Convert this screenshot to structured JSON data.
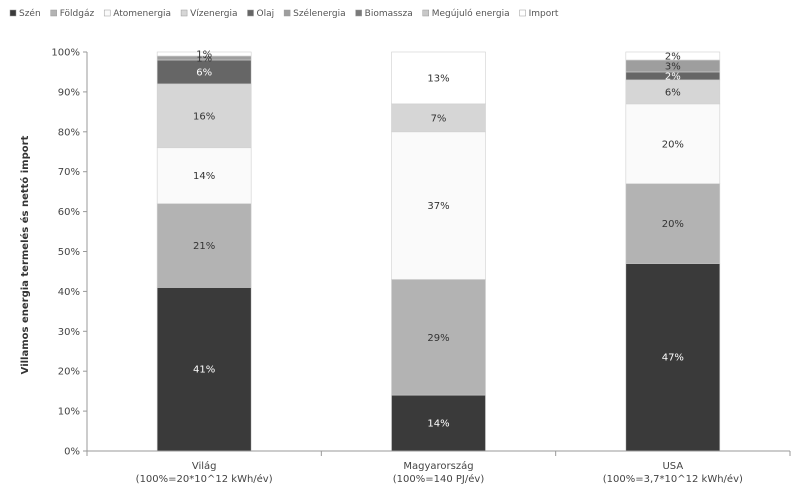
{
  "chart_data": {
    "type": "bar",
    "stacked": true,
    "title": "",
    "xlabel": "",
    "ylabel": "Villamos energia termelés és nettó import",
    "ylim": [
      0,
      100
    ],
    "yticks": [
      "0%",
      "10%",
      "20%",
      "30%",
      "40%",
      "50%",
      "60%",
      "70%",
      "80%",
      "90%",
      "100%"
    ],
    "grid": false,
    "legend_position": "top",
    "categories": [
      [
        "Világ",
        "(100%=20*10^12 kWh/év)"
      ],
      [
        "Magyarország",
        "(100%=140 PJ/év)"
      ],
      [
        "USA",
        "(100%=3,7*10^12 kWh/év)"
      ]
    ],
    "series": [
      {
        "name": "Szén",
        "color": "#3a3a3a",
        "values": [
          41,
          14,
          47
        ],
        "labels": [
          "41%",
          "14%",
          "47%"
        ]
      },
      {
        "name": "Földgáz",
        "color": "#b3b3b3",
        "values": [
          21,
          29,
          20
        ],
        "labels": [
          "21%",
          "29%",
          "20%"
        ]
      },
      {
        "name": "Atomenergia",
        "color": "#fafafa",
        "values": [
          14,
          37,
          20
        ],
        "labels": [
          "14%",
          "37%",
          "20%"
        ]
      },
      {
        "name": "Vízenergia",
        "color": "#d6d6d6",
        "values": [
          16,
          7,
          6
        ],
        "labels": [
          "16%",
          "7%",
          "6%"
        ]
      },
      {
        "name": "Olaj",
        "color": "#666666",
        "values": [
          6,
          0,
          2
        ],
        "labels": [
          "6%",
          "",
          "2%"
        ]
      },
      {
        "name": "Szélenergia",
        "color": "#9e9e9e",
        "values": [
          1,
          0,
          3
        ],
        "labels": [
          "1%",
          "",
          "3%"
        ]
      },
      {
        "name": "Biomassza",
        "color": "#7a7a7a",
        "values": [
          0,
          0,
          0
        ],
        "labels": [
          "",
          "",
          ""
        ]
      },
      {
        "name": "Megújuló energia",
        "color": "#c8c8c8",
        "values": [
          0,
          0,
          0
        ],
        "labels": [
          "",
          "",
          ""
        ]
      },
      {
        "name": "Import",
        "color": "#ffffff",
        "values": [
          1,
          13,
          2
        ],
        "labels": [
          "1%",
          "13%",
          "2%"
        ]
      }
    ]
  }
}
